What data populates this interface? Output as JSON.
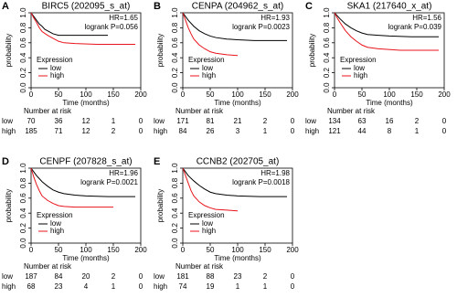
{
  "chart_data": [
    {
      "type": "line",
      "panel_label": "A",
      "title": "BIRC5 (202095_s_at)",
      "annotations": [
        "HR=1.65",
        "logrank P=0.056"
      ],
      "xlabel": "Time (months)",
      "ylabel": "probability",
      "xlim": [
        0,
        200
      ],
      "ylim": [
        0,
        1
      ],
      "xticks": [
        0,
        50,
        100,
        150,
        200
      ],
      "yticks": [
        {
          "value": 0,
          "label": "0.0"
        },
        0.2,
        0.4,
        0.6,
        0.8,
        {
          "value": 1,
          "label": "1.0"
        }
      ],
      "legend_title": "Expression",
      "risk_title": "Number at risk",
      "series": [
        {
          "name": "low",
          "color": "#000000",
          "x": [
            0,
            5,
            10,
            15,
            20,
            25,
            30,
            35,
            40,
            50,
            60,
            80,
            140
          ],
          "values": [
            1,
            0.95,
            0.9,
            0.85,
            0.82,
            0.78,
            0.76,
            0.74,
            0.72,
            0.7,
            0.7,
            0.7,
            0.7
          ],
          "at_risk": [
            70,
            36,
            12,
            1,
            0
          ]
        },
        {
          "name": "high",
          "color": "#e8141b",
          "x": [
            0,
            5,
            10,
            15,
            20,
            30,
            40,
            50,
            60,
            80,
            120,
            190
          ],
          "values": [
            1,
            0.93,
            0.87,
            0.8,
            0.75,
            0.7,
            0.66,
            0.62,
            0.6,
            0.59,
            0.58,
            0.58
          ],
          "at_risk": [
            185,
            71,
            12,
            2,
            0
          ]
        }
      ]
    },
    {
      "type": "line",
      "panel_label": "B",
      "title": "CENPA (204962_s_at)",
      "annotations": [
        "HR=1.93",
        "logrank P=0.0023"
      ],
      "xlabel": "Time (months)",
      "ylabel": "probability",
      "xlim": [
        0,
        200
      ],
      "ylim": [
        0,
        1
      ],
      "xticks": [
        0,
        50,
        100,
        150,
        200
      ],
      "yticks": [
        {
          "value": 0,
          "label": "0.0"
        },
        0.2,
        0.4,
        0.6,
        0.8,
        {
          "value": 1,
          "label": "1.0"
        }
      ],
      "legend_title": "Expression",
      "risk_title": "Number at risk",
      "series": [
        {
          "name": "low",
          "color": "#000000",
          "x": [
            0,
            5,
            10,
            20,
            30,
            40,
            50,
            60,
            80,
            100,
            130,
            190
          ],
          "values": [
            1,
            0.95,
            0.9,
            0.82,
            0.76,
            0.72,
            0.69,
            0.67,
            0.65,
            0.64,
            0.63,
            0.63
          ],
          "at_risk": [
            171,
            81,
            21,
            2,
            0
          ]
        },
        {
          "name": "high",
          "color": "#e8141b",
          "x": [
            0,
            5,
            10,
            15,
            20,
            30,
            40,
            50,
            60,
            80,
            100
          ],
          "values": [
            1,
            0.9,
            0.8,
            0.72,
            0.65,
            0.57,
            0.52,
            0.48,
            0.46,
            0.44,
            0.43
          ],
          "at_risk": [
            84,
            26,
            3,
            1,
            0
          ]
        }
      ]
    },
    {
      "type": "line",
      "panel_label": "C",
      "title": "SKA1 (217640_x_at)",
      "annotations": [
        "HR=1.56",
        "logrank P=0.039"
      ],
      "xlabel": "Time (months)",
      "ylabel": "probability",
      "xlim": [
        0,
        200
      ],
      "ylim": [
        0,
        1
      ],
      "xticks": [
        0,
        50,
        100,
        150,
        200
      ],
      "yticks": [
        {
          "value": 0,
          "label": "0.0"
        },
        0.2,
        0.4,
        0.6,
        0.8,
        {
          "value": 1,
          "label": "1.0"
        }
      ],
      "legend_title": "Expression",
      "risk_title": "Number at risk",
      "series": [
        {
          "name": "low",
          "color": "#000000",
          "x": [
            0,
            5,
            10,
            20,
            30,
            40,
            50,
            60,
            80,
            100,
            140,
            190
          ],
          "values": [
            1,
            0.96,
            0.92,
            0.85,
            0.8,
            0.76,
            0.73,
            0.71,
            0.7,
            0.69,
            0.68,
            0.68
          ],
          "at_risk": [
            134,
            63,
            16,
            2,
            0
          ]
        },
        {
          "name": "high",
          "color": "#e8141b",
          "x": [
            0,
            5,
            10,
            20,
            30,
            40,
            50,
            60,
            80,
            120,
            190
          ],
          "values": [
            1,
            0.93,
            0.87,
            0.76,
            0.68,
            0.62,
            0.57,
            0.54,
            0.52,
            0.5,
            0.5
          ],
          "at_risk": [
            121,
            44,
            8,
            1,
            0
          ]
        }
      ]
    },
    {
      "type": "line",
      "panel_label": "D",
      "title": "CENPF (207828_s_at)",
      "annotations": [
        "HR=1.96",
        "logrank P=0.0021"
      ],
      "xlabel": "Time (months)",
      "ylabel": "probability",
      "xlim": [
        0,
        200
      ],
      "ylim": [
        0,
        1
      ],
      "xticks": [
        0,
        50,
        100,
        150,
        200
      ],
      "yticks": [
        {
          "value": 0,
          "label": "0.0"
        },
        0.2,
        0.4,
        0.6,
        0.8,
        {
          "value": 1,
          "label": "1.0"
        }
      ],
      "legend_title": "Expression",
      "risk_title": "Number at risk",
      "series": [
        {
          "name": "low",
          "color": "#000000",
          "x": [
            0,
            5,
            10,
            20,
            30,
            40,
            50,
            60,
            80,
            100,
            140,
            190
          ],
          "values": [
            1,
            0.95,
            0.9,
            0.82,
            0.76,
            0.71,
            0.68,
            0.66,
            0.64,
            0.63,
            0.62,
            0.62
          ],
          "at_risk": [
            187,
            84,
            20,
            2,
            0
          ]
        },
        {
          "name": "high",
          "color": "#e8141b",
          "x": [
            0,
            5,
            10,
            15,
            20,
            30,
            40,
            50,
            60,
            80,
            150
          ],
          "values": [
            1,
            0.88,
            0.78,
            0.7,
            0.63,
            0.57,
            0.53,
            0.5,
            0.49,
            0.48,
            0.48
          ],
          "at_risk": [
            68,
            23,
            4,
            1,
            0
          ]
        }
      ]
    },
    {
      "type": "line",
      "panel_label": "E",
      "title": "CCNB2 (202705_at)",
      "annotations": [
        "HR=1.98",
        "logrank P=0.0018"
      ],
      "xlabel": "Time (months)",
      "ylabel": "probability",
      "xlim": [
        0,
        200
      ],
      "ylim": [
        0,
        1
      ],
      "xticks": [
        0,
        50,
        100,
        150,
        200
      ],
      "yticks": [
        {
          "value": 0,
          "label": "0.0"
        },
        0.2,
        0.4,
        0.6,
        0.8,
        {
          "value": 1,
          "label": "1.0"
        }
      ],
      "legend_title": "Expression",
      "risk_title": "Number at risk",
      "series": [
        {
          "name": "low",
          "color": "#000000",
          "x": [
            0,
            5,
            10,
            20,
            30,
            40,
            50,
            60,
            80,
            100,
            140,
            190
          ],
          "values": [
            1,
            0.95,
            0.9,
            0.83,
            0.77,
            0.72,
            0.68,
            0.66,
            0.64,
            0.63,
            0.62,
            0.62
          ],
          "at_risk": [
            181,
            88,
            23,
            2,
            0
          ]
        },
        {
          "name": "high",
          "color": "#e8141b",
          "x": [
            0,
            5,
            10,
            15,
            20,
            30,
            40,
            50,
            60,
            80,
            100
          ],
          "values": [
            1,
            0.9,
            0.8,
            0.7,
            0.63,
            0.55,
            0.5,
            0.47,
            0.45,
            0.44,
            0.43
          ],
          "at_risk": [
            74,
            19,
            1,
            1,
            0
          ]
        }
      ]
    }
  ]
}
